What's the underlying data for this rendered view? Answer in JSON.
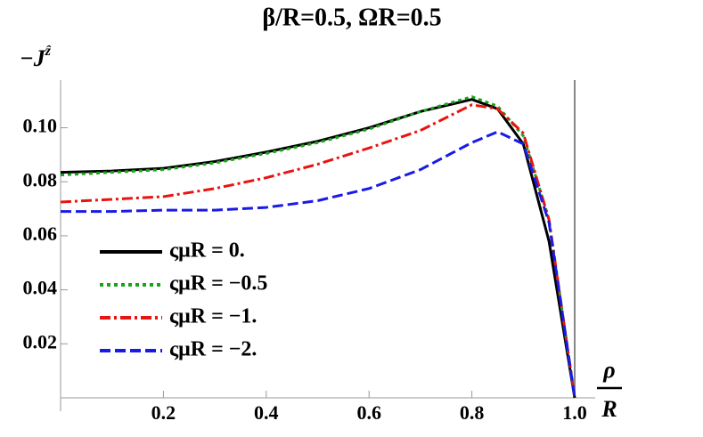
{
  "chart_data": {
    "type": "line",
    "title": "β/R=0.5, ΩR=0.5",
    "ylabel": {
      "base": "−J",
      "superscript": "ẑ"
    },
    "xlabel": {
      "numerator": "ρ",
      "denominator": "R"
    },
    "x": [
      0,
      0.1,
      0.2,
      0.3,
      0.4,
      0.5,
      0.6,
      0.7,
      0.8,
      0.85,
      0.9,
      0.95,
      1.0
    ],
    "series": [
      {
        "name": "ςμR = 0.",
        "color": "#000000",
        "style": "solid",
        "values": [
          0.0835,
          0.084,
          0.085,
          0.0875,
          0.091,
          0.095,
          0.1,
          0.106,
          0.1105,
          0.107,
          0.094,
          0.058,
          0
        ]
      },
      {
        "name": "ςμR = −0.5",
        "color": "#1aa31a",
        "style": "dotted",
        "values": [
          0.0825,
          0.0835,
          0.0845,
          0.087,
          0.0905,
          0.0945,
          0.0995,
          0.106,
          0.1115,
          0.108,
          0.097,
          0.066,
          0
        ]
      },
      {
        "name": "ςμR = −1.",
        "color": "#e8140f",
        "style": "dashdot",
        "values": [
          0.0725,
          0.0735,
          0.0745,
          0.0775,
          0.0815,
          0.0865,
          0.0925,
          0.099,
          0.1085,
          0.107,
          0.098,
          0.066,
          0
        ]
      },
      {
        "name": "ςμR = −2.",
        "color": "#1a1ae6",
        "style": "dashed",
        "values": [
          0.069,
          0.069,
          0.0695,
          0.0695,
          0.0705,
          0.073,
          0.0775,
          0.0845,
          0.0945,
          0.0985,
          0.094,
          0.065,
          0
        ]
      }
    ],
    "xlim": [
      0,
      1.026
    ],
    "ylim": [
      0,
      0.116
    ],
    "xticks": [
      0.2,
      0.4,
      0.6,
      0.8,
      {
        "value": 1,
        "label": "1.0"
      }
    ],
    "yticks": [
      0.02,
      0.04,
      0.06,
      {
        "value": 0.08,
        "label": "0.08"
      },
      {
        "value": 0.1,
        "label": "0.10"
      }
    ],
    "x_gridlines": [
      1
    ],
    "legend": "lower-left"
  }
}
